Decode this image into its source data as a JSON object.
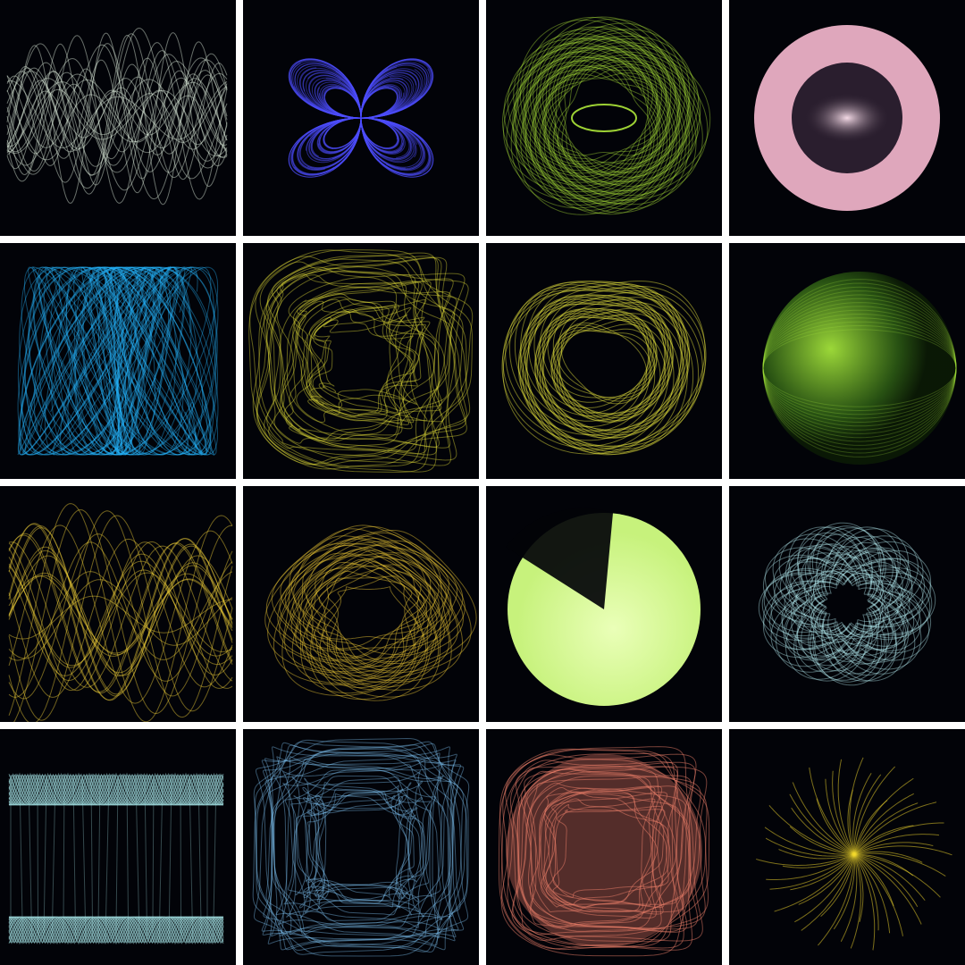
{
  "gallery": {
    "rows": 4,
    "columns": 4,
    "background_color": "#020308",
    "separator_color": "#ffffff",
    "tiles": [
      {
        "name": "attractor-ribbon-wave",
        "style": "ribbon",
        "color": "#e4f4e2"
      },
      {
        "name": "attractor-petal-flower",
        "style": "petal4",
        "color": "#4e4dff"
      },
      {
        "name": "attractor-torus-eye",
        "style": "torus",
        "color": "#aee83a"
      },
      {
        "name": "attractor-glow-ring",
        "style": "ring",
        "color": "#f2b5cc"
      },
      {
        "name": "attractor-tangled-knot",
        "style": "knot",
        "color": "#25b7ff"
      },
      {
        "name": "attractor-square-cushion",
        "style": "cushion",
        "color": "#e6e33a"
      },
      {
        "name": "attractor-heart-sphere",
        "style": "heart",
        "color": "#f2f040"
      },
      {
        "name": "attractor-shaded-sphere",
        "style": "sphere",
        "color": "#a4e33b"
      },
      {
        "name": "attractor-sine-wave",
        "style": "sine",
        "color": "#f6d43a"
      },
      {
        "name": "attractor-curl-ring",
        "style": "curl",
        "color": "#f1cc35"
      },
      {
        "name": "attractor-cone-disk",
        "style": "cone",
        "color": "#c7f27c"
      },
      {
        "name": "attractor-clover-bloom",
        "style": "clover",
        "color": "#b8f0f6"
      },
      {
        "name": "attractor-crown-cylinder",
        "style": "crown",
        "color": "#a9e8ea"
      },
      {
        "name": "attractor-blue-cushion",
        "style": "bluecushion",
        "color": "#7fc4f4"
      },
      {
        "name": "attractor-coral-cushion",
        "style": "coral",
        "color": "#ee7f6a"
      },
      {
        "name": "attractor-sun-flower",
        "style": "sunflower",
        "color": "#f5dc2e"
      }
    ]
  }
}
